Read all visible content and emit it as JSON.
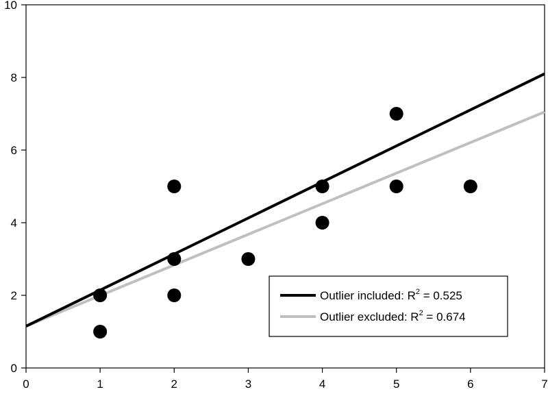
{
  "chart_data": {
    "type": "scatter",
    "title": "",
    "xlabel": "",
    "ylabel": "",
    "xlim": [
      0,
      7
    ],
    "ylim": [
      0,
      10
    ],
    "xticks": [
      "0",
      "1",
      "2",
      "3",
      "4",
      "5",
      "6",
      "7"
    ],
    "yticks": [
      "0",
      "2",
      "4",
      "6",
      "8",
      "10"
    ],
    "grid": false,
    "legend_position": "bottom-right",
    "points": [
      {
        "x": 1,
        "y": 1
      },
      {
        "x": 1,
        "y": 2
      },
      {
        "x": 2,
        "y": 2
      },
      {
        "x": 2,
        "y": 3
      },
      {
        "x": 2,
        "y": 5
      },
      {
        "x": 3,
        "y": 3
      },
      {
        "x": 4,
        "y": 4
      },
      {
        "x": 4,
        "y": 5
      },
      {
        "x": 5,
        "y": 5
      },
      {
        "x": 5,
        "y": 7
      },
      {
        "x": 6,
        "y": 5
      }
    ],
    "point_color": "#000000",
    "lines": [
      {
        "legend_label": "Outlier included:  R",
        "r2_value": " = 0.525",
        "color": "#000000",
        "start": {
          "x": 0,
          "y": 1.15
        },
        "end": {
          "x": 7,
          "y": 8.1
        }
      },
      {
        "legend_label": "Outlier excluded: R",
        "r2_value": " = 0.674",
        "color": "#c0c0c0",
        "start": {
          "x": 0,
          "y": 1.15
        },
        "end": {
          "x": 7,
          "y": 7.05
        }
      }
    ],
    "superscript": "2"
  }
}
